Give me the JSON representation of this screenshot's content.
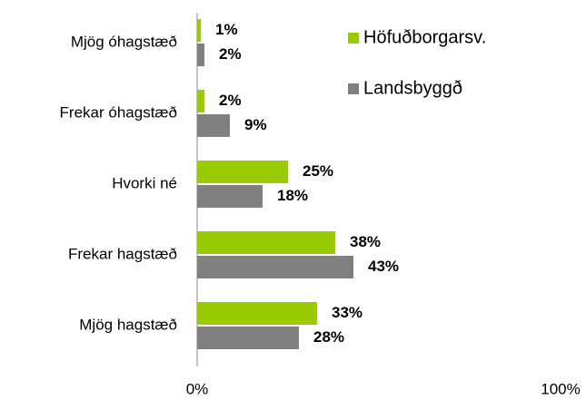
{
  "chart_data": {
    "type": "barh",
    "categories": [
      "Mjög óhagstæð",
      "Frekar óhagstæð",
      "Hvorki né",
      "Frekar hagstæð",
      "Mjög hagstæð"
    ],
    "series": [
      {
        "name": "Höfuðborgarsv.",
        "color": "#99cc00",
        "values": [
          1,
          2,
          25,
          38,
          33
        ],
        "value_labels": [
          "1%",
          "2%",
          "25%",
          "38%",
          "33%"
        ]
      },
      {
        "name": "Landsbyggð",
        "color": "#808080",
        "values": [
          2,
          9,
          18,
          43,
          28
        ],
        "value_labels": [
          "2%",
          "9%",
          "18%",
          "43%",
          "28%"
        ]
      }
    ],
    "xlim": [
      0,
      100
    ],
    "xticks": [
      {
        "value": 0,
        "label": "0%"
      },
      {
        "value": 100,
        "label": "100%"
      }
    ],
    "legend": "top-right"
  }
}
